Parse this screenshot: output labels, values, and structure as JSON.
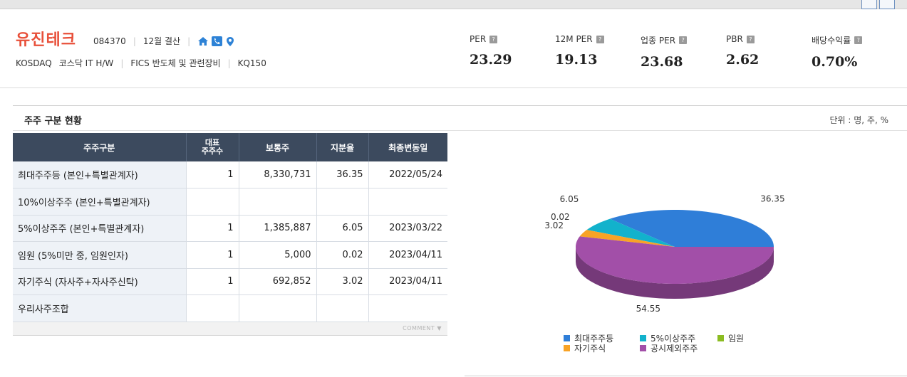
{
  "company": {
    "name": "유진테크",
    "code": "084370",
    "fiscal": "12월 결산",
    "market": "KOSDAQ",
    "sector": "코스닥 IT H/W",
    "fics": "FICS 반도체 및 관련장비",
    "index": "KQ150"
  },
  "metrics": [
    {
      "label": "PER",
      "value": "23.29"
    },
    {
      "label": "12M PER",
      "value": "19.13"
    },
    {
      "label": "업종 PER",
      "value": "23.68"
    },
    {
      "label": "PBR",
      "value": "2.62"
    },
    {
      "label": "배당수익률",
      "value": "0.70%"
    }
  ],
  "help_glyph": "?",
  "section": {
    "title": "주주 구분 현황",
    "unit": "단위 : 명, 주, %"
  },
  "table": {
    "headers": [
      "주주구분",
      "대표\n주주수",
      "보통주",
      "지분율",
      "최종변동일"
    ],
    "header_line1": "대표",
    "header_line2": "주주수",
    "rows": [
      [
        "최대주주등 (본인+특별관계자)",
        "1",
        "8,330,731",
        "36.35",
        "2022/05/24"
      ],
      [
        "10%이상주주 (본인+특별관계자)",
        "",
        "",
        "",
        ""
      ],
      [
        "5%이상주주 (본인+특별관계자)",
        "1",
        "1,385,887",
        "6.05",
        "2023/03/22"
      ],
      [
        "임원 (5%미만 중, 임원인자)",
        "1",
        "5,000",
        "0.02",
        "2023/04/11"
      ],
      [
        "자기주식 (자사주+자사주신탁)",
        "1",
        "692,852",
        "3.02",
        "2023/04/11"
      ],
      [
        "우리사주조합",
        "",
        "",
        "",
        ""
      ]
    ],
    "comment": "COMMENT"
  },
  "chart_data": {
    "type": "pie",
    "slices": [
      {
        "name": "최대주주등",
        "value": 36.35,
        "color": "#2f7ed8",
        "label": "36.35"
      },
      {
        "name": "5%이상주주",
        "value": 6.05,
        "color": "#12b2cc",
        "label": "6.05"
      },
      {
        "name": "임원",
        "value": 0.02,
        "color": "#8bbc21",
        "label": "0.02"
      },
      {
        "name": "자기주식",
        "value": 3.02,
        "color": "#f8a326",
        "label": "3.02"
      },
      {
        "name": "공시제외주주",
        "value": 54.55,
        "color": "#a24fa8",
        "label": "54.55"
      }
    ],
    "legend_rows": [
      [
        "최대주주등",
        "5%이상주주",
        "임원"
      ],
      [
        "자기주식",
        "공시제외주주"
      ]
    ],
    "legend_placement": "bottom",
    "style": "3d"
  }
}
